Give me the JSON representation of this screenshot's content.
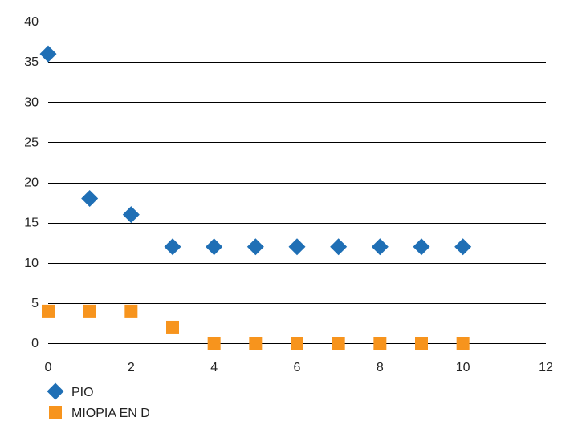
{
  "chart_data": {
    "type": "scatter",
    "title": "",
    "xlabel": "",
    "ylabel": "",
    "xlim": [
      0,
      12
    ],
    "ylim": [
      0,
      40
    ],
    "x_ticks": [
      "0",
      "2",
      "4",
      "6",
      "8",
      "10",
      "12"
    ],
    "y_ticks": [
      "0",
      "5",
      "10",
      "15",
      "20",
      "25",
      "30",
      "35",
      "40"
    ],
    "grid": "horizontal",
    "legend_position": "bottom-left",
    "series": [
      {
        "name": "PIO",
        "marker": "diamond",
        "color": "#1f6fb5",
        "x": [
          0,
          1,
          2,
          3,
          4,
          5,
          6,
          7,
          8,
          9,
          10
        ],
        "y": [
          36,
          18,
          16,
          12,
          12,
          12,
          12,
          12,
          12,
          12,
          12
        ]
      },
      {
        "name": "MIOPIA EN D",
        "marker": "square",
        "color": "#f7941d",
        "x": [
          0,
          1,
          2,
          3,
          4,
          5,
          6,
          7,
          8,
          9,
          10
        ],
        "y": [
          4,
          4,
          4,
          2,
          0,
          0,
          0,
          0,
          0,
          0,
          0
        ]
      }
    ]
  }
}
